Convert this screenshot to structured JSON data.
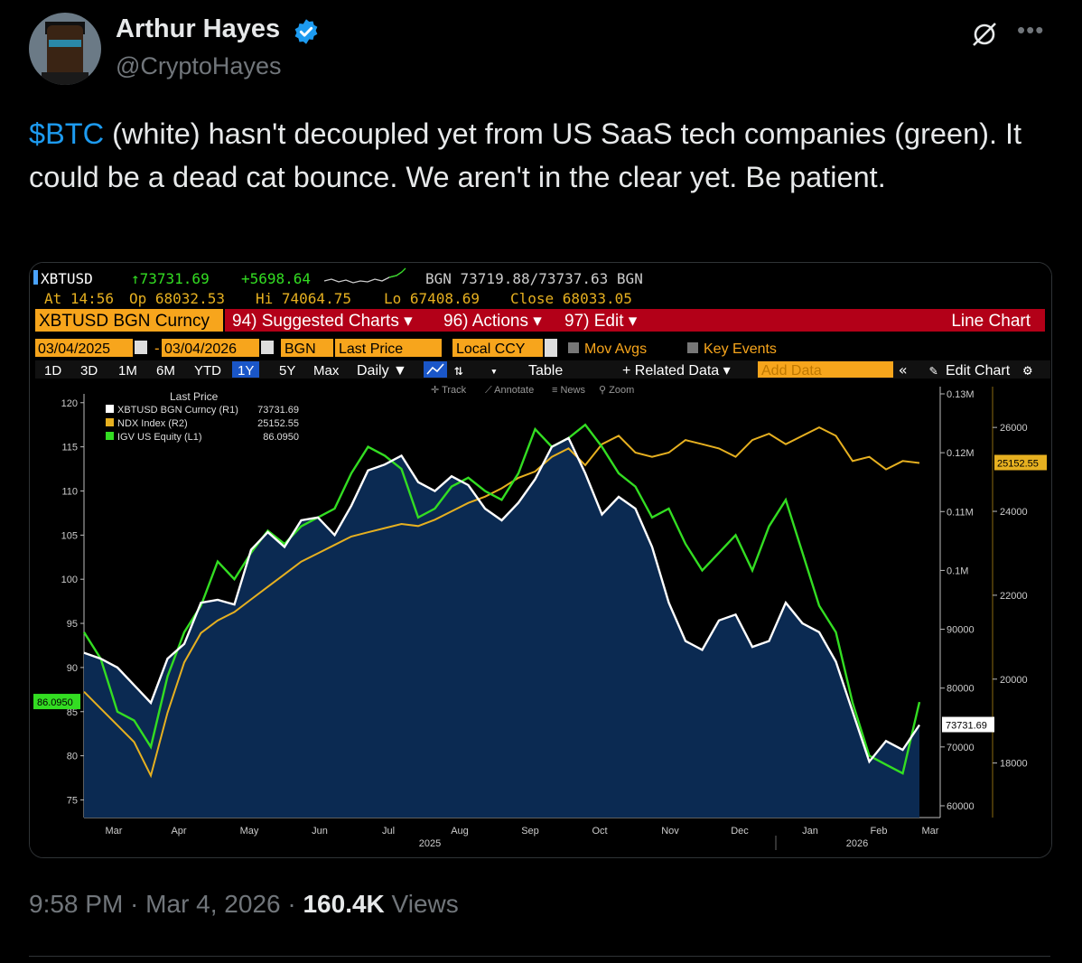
{
  "author": {
    "name": "Arthur Hayes",
    "handle": "@CryptoHayes"
  },
  "tweet": {
    "cashtag": "$BTC",
    "text": " (white) hasn't decoupled yet from US SaaS tech companies (green). It could be a dead cat bounce. We aren't in the clear yet. Be patient."
  },
  "meta": {
    "time": "9:58 PM",
    "sep1": " · ",
    "date": "Mar 4, 2026",
    "sep2": " · ",
    "views": "160.4K",
    "views_label": " Views"
  },
  "terminal": {
    "ticker": "XBTUSD",
    "last": "↑73731.69",
    "change": "+5698.64",
    "bid_ask": "BGN 73719.88/73737.63 BGN",
    "at_time": "At 14:56",
    "open": "Op 68032.53",
    "high": "Hi 74064.75",
    "low": "Lo 67408.69",
    "close": "Close 68033.05",
    "security": "XBTUSD BGN Curncy",
    "menu_suggested": "94) Suggested Charts ▾",
    "menu_actions": "96) Actions ▾",
    "menu_edit": "97) Edit ▾",
    "chart_type": "Line Chart",
    "date_from": "03/04/2025",
    "date_to": "03/04/2026",
    "source": "BGN",
    "field": "Last Price",
    "currency": "Local CCY",
    "mov_avgs": "Mov Avgs",
    "key_events": "Key Events",
    "ranges": [
      "1D",
      "3D",
      "1M",
      "6M",
      "YTD",
      "1Y",
      "5Y",
      "Max"
    ],
    "active_range": "1Y",
    "frequency": "Daily ▼",
    "table": "Table",
    "related": "+ Related Data ▾",
    "add_data": "Add Data",
    "edit_chart": "Edit Chart",
    "tool_track": "Track",
    "tool_annotate": "Annotate",
    "tool_news": "News",
    "tool_zoom": "Zoom",
    "colors": {
      "bg": "#000000",
      "orange": "#f7a51c",
      "red_bar": "#b30018",
      "fill": "#0b2a52",
      "btc": "#ffffff",
      "igv": "#33dd22",
      "ndx": "#e6b020",
      "blue_btn": "#1a56c8"
    }
  },
  "chart_data": {
    "type": "line",
    "title": "Last Price",
    "legend": [
      {
        "name": "XBTUSD BGN Curncy (R1)",
        "value": "73731.69",
        "color": "#ffffff"
      },
      {
        "name": "NDX Index (R2)",
        "value": "25152.55",
        "color": "#e6b020"
      },
      {
        "name": "IGV US Equity (L1)",
        "value": "86.0950",
        "color": "#33dd22"
      }
    ],
    "x_labels": [
      "Mar",
      "Apr",
      "May",
      "Jun",
      "Jul",
      "Aug",
      "Sep",
      "Oct",
      "Nov",
      "Dec",
      "Jan",
      "Feb",
      "Mar"
    ],
    "year_labels": [
      "2025",
      "2026"
    ],
    "left_axis": {
      "ticks": [
        "120",
        "115",
        "110",
        "105",
        "100",
        "95",
        "90",
        "85",
        "80",
        "75"
      ],
      "range": [
        73,
        121
      ],
      "last_label": "86.0950"
    },
    "right1_axis": {
      "ticks": [
        "0.13M",
        "0.12M",
        "0.11M",
        "0.1M",
        "90000",
        "80000",
        "70000",
        "60000"
      ],
      "range": [
        58000,
        130000
      ],
      "last_label": "73731.69"
    },
    "right2_axis": {
      "ticks": [
        "26000",
        "24000",
        "22000",
        "20000",
        "18000"
      ],
      "range": [
        16700,
        26800
      ],
      "last_label": "25152.55"
    },
    "series": [
      {
        "name": "XBTUSD BGN Curncy",
        "axis": "R1",
        "color": "#ffffff",
        "values": [
          86000,
          85000,
          83500,
          80500,
          77500,
          85000,
          87500,
          94500,
          95000,
          94200,
          103500,
          106500,
          104000,
          108500,
          109000,
          106000,
          111000,
          117000,
          118000,
          119500,
          115000,
          113500,
          116000,
          114500,
          110500,
          108500,
          111500,
          115500,
          121000,
          122500,
          116500,
          109500,
          112500,
          110500,
          104000,
          94500,
          88000,
          86500,
          91500,
          92500,
          87000,
          88000,
          94500,
          91000,
          89500,
          84500,
          76000,
          67500,
          71000,
          69500,
          73731.69
        ]
      },
      {
        "name": "IGV US Equity",
        "axis": "L1",
        "color": "#33dd22",
        "values": [
          94,
          91,
          85,
          84,
          81,
          89,
          94,
          97,
          102,
          100,
          103,
          105.5,
          104,
          106,
          107,
          108,
          112,
          115,
          114,
          112.5,
          107,
          108,
          110.5,
          111.5,
          110,
          109,
          112,
          117,
          115,
          116,
          117.5,
          115,
          112,
          110.5,
          107,
          108,
          104,
          101,
          103,
          105,
          101,
          106,
          109,
          103,
          97,
          94,
          86,
          80,
          79,
          78,
          86.095
        ]
      },
      {
        "name": "NDX Index",
        "axis": "R2",
        "color": "#e6b020",
        "values": [
          19700,
          19300,
          18900,
          18500,
          17700,
          19200,
          20400,
          21100,
          21400,
          21600,
          21900,
          22200,
          22500,
          22800,
          23000,
          23200,
          23400,
          23500,
          23600,
          23700,
          23650,
          23800,
          24000,
          24200,
          24350,
          24550,
          24800,
          24950,
          25300,
          25500,
          25100,
          25600,
          25800,
          25400,
          25300,
          25400,
          25700,
          25600,
          25500,
          25300,
          25700,
          25850,
          25600,
          25800,
          26000,
          25800,
          25200,
          25300,
          25000,
          25200,
          25152.55
        ]
      }
    ]
  }
}
